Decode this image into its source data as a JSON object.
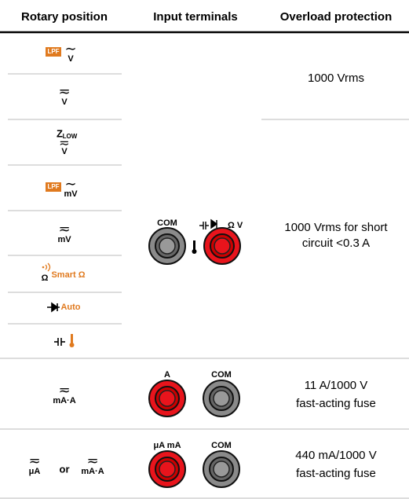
{
  "header": [
    "Rotary position",
    "Input terminals",
    "Overload protection"
  ],
  "groups": [
    {
      "rotary": [
        {
          "badge": "LPF",
          "wave": "∼",
          "unit": "V"
        },
        {
          "wave": "≂",
          "unit": "V"
        },
        {
          "name": "Z",
          "sub": "LOW",
          "wave": "≂",
          "unit": "V"
        },
        {
          "badge": "LPF",
          "wave": "∼",
          "unit": "mV"
        },
        {
          "wave": "≂",
          "unit": "mV"
        },
        {
          "name": "Ω",
          "label": "Smart Ω"
        },
        {
          "label": "Auto"
        }
      ],
      "terminals": [
        "COM",
        "Ω V"
      ],
      "protection": [
        [
          "1000 Vrms"
        ],
        [
          "1000 Vrms for short",
          "circuit <0.3 A"
        ]
      ]
    },
    {
      "rotary": [
        {
          "wave": "≂",
          "unit": "mA·A"
        }
      ],
      "terminals": [
        "A",
        "COM"
      ],
      "protection": [
        [
          "11 A/1000 V",
          "fast-acting fuse"
        ]
      ]
    },
    {
      "rotary": [
        {
          "wave": "≂",
          "unit": "μA"
        },
        {
          "wave": "≂",
          "unit": "mA·A"
        }
      ],
      "joiner": "or",
      "terminals": [
        "μA mA",
        "COM"
      ],
      "protection": [
        [
          "440 mA/1000 V",
          "fast-acting fuse"
        ]
      ]
    }
  ]
}
